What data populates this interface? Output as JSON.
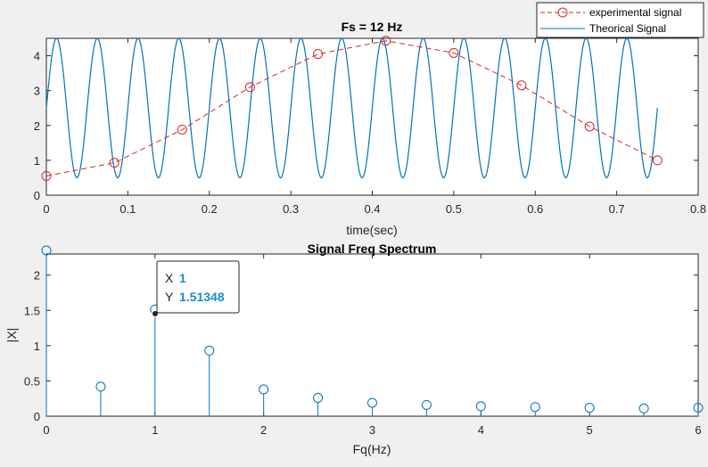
{
  "chart_data": [
    {
      "type": "line",
      "title": "Fs = 12 Hz",
      "xlabel": "time(sec)",
      "ylabel": "",
      "xlim": [
        0,
        0.8
      ],
      "ylim": [
        0,
        4.5
      ],
      "xticks": [
        "0",
        "0.1",
        "0.2",
        "0.3",
        "0.4",
        "0.5",
        "0.6",
        "0.7",
        "0.8"
      ],
      "yticks": [
        "0",
        "1",
        "2",
        "3",
        "4"
      ],
      "legend": {
        "position": "top-right"
      },
      "series": [
        {
          "name": "experimental signal",
          "color": "#d62728",
          "style": "dashed-with-circle-markers",
          "x": [
            0,
            0.0833,
            0.1667,
            0.25,
            0.3333,
            0.4167,
            0.5,
            0.5833,
            0.6667,
            0.75
          ],
          "y": [
            0.55,
            0.93,
            1.88,
            3.1,
            4.05,
            4.43,
            4.08,
            3.15,
            1.97,
            1.0
          ]
        },
        {
          "name": "Theorical Signal",
          "color": "#0072bd",
          "style": "solid",
          "function": {
            "offset": 2.5,
            "amplitude": 2.0,
            "frequency_hz": 20,
            "phase": "sine"
          },
          "x_range": [
            0,
            0.75
          ],
          "y_range": [
            0.5,
            4.5
          ]
        }
      ]
    },
    {
      "type": "stem",
      "title": "Signal Freq Spectrum",
      "xlabel": "Fq(Hz)",
      "ylabel": "|X|",
      "xlim": [
        0,
        6
      ],
      "ylim": [
        0,
        2.3
      ],
      "xticks": [
        "0",
        "1",
        "2",
        "3",
        "4",
        "5",
        "6"
      ],
      "yticks": [
        "0",
        "0.5",
        "1",
        "1.5",
        "2"
      ],
      "color": "#0072bd",
      "x": [
        0,
        0.5,
        1,
        1.5,
        2,
        2.5,
        3,
        3.5,
        4,
        4.5,
        5,
        5.5,
        6
      ],
      "y": [
        2.35,
        0.42,
        1.51348,
        0.93,
        0.38,
        0.26,
        0.19,
        0.16,
        0.14,
        0.13,
        0.12,
        0.11,
        0.12
      ],
      "datatip": {
        "x_key": "X",
        "x_value": "1",
        "y_key": "Y",
        "y_value": "1.51348"
      }
    }
  ]
}
